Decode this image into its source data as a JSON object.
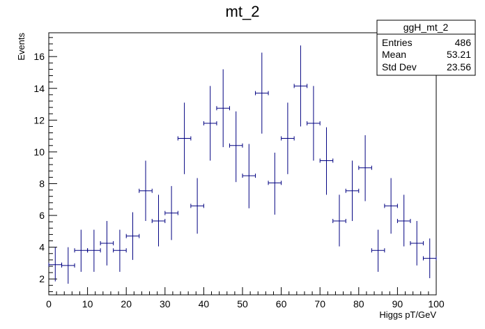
{
  "chart_data": {
    "type": "scatter",
    "title": "mt_2",
    "xlabel": "Higgs pT/GeV",
    "ylabel": "Events",
    "xlim": [
      0,
      100
    ],
    "ylim": [
      1,
      17.5
    ],
    "x_ticks": [
      0,
      10,
      20,
      30,
      40,
      50,
      60,
      70,
      80,
      90,
      100
    ],
    "y_ticks": [
      2,
      4,
      6,
      8,
      10,
      12,
      14,
      16
    ],
    "bin_width": 3.33,
    "marker_color": "#000080",
    "grid": false,
    "legend": "none",
    "series": [
      {
        "x": [
          1.67,
          5.0,
          8.33,
          11.67,
          15.0,
          18.33,
          21.67,
          25.0,
          28.33,
          31.67,
          35.0,
          38.33,
          41.67,
          45.0,
          48.33,
          51.67,
          55.0,
          58.33,
          61.67,
          65.0,
          68.33,
          71.67,
          75.0,
          78.33,
          81.67,
          85.0,
          88.33,
          91.67,
          95.0,
          98.33
        ],
        "y": [
          2.9,
          2.85,
          3.8,
          3.8,
          4.25,
          3.8,
          4.7,
          7.55,
          5.65,
          6.15,
          10.85,
          6.6,
          11.8,
          12.75,
          10.4,
          8.5,
          13.7,
          8.05,
          10.85,
          14.15,
          11.8,
          9.45,
          5.65,
          7.55,
          9.0,
          3.8,
          6.6,
          5.65,
          4.25,
          3.3
        ],
        "y_low": [
          1.85,
          1.7,
          2.45,
          2.45,
          2.85,
          2.45,
          3.2,
          5.65,
          4.05,
          4.45,
          8.6,
          4.85,
          9.45,
          10.3,
          8.1,
          6.45,
          11.15,
          6.05,
          8.6,
          11.6,
          9.45,
          7.3,
          4.05,
          5.65,
          6.9,
          2.45,
          4.85,
          4.05,
          2.85,
          2.05
        ],
        "y_high": [
          4.0,
          4.0,
          5.1,
          5.1,
          5.65,
          5.1,
          6.2,
          9.45,
          7.3,
          7.85,
          13.1,
          8.35,
          14.15,
          15.2,
          12.55,
          10.5,
          16.25,
          9.95,
          13.1,
          16.7,
          14.15,
          11.55,
          7.3,
          9.45,
          11.05,
          5.1,
          8.35,
          7.3,
          5.65,
          4.55
        ]
      }
    ]
  },
  "stats": {
    "name": "ggH_mt_2",
    "rows": [
      {
        "label": "Entries",
        "value": "486"
      },
      {
        "label": "Mean",
        "value": "53.21"
      },
      {
        "label": "Std Dev",
        "value": "23.56"
      }
    ]
  }
}
